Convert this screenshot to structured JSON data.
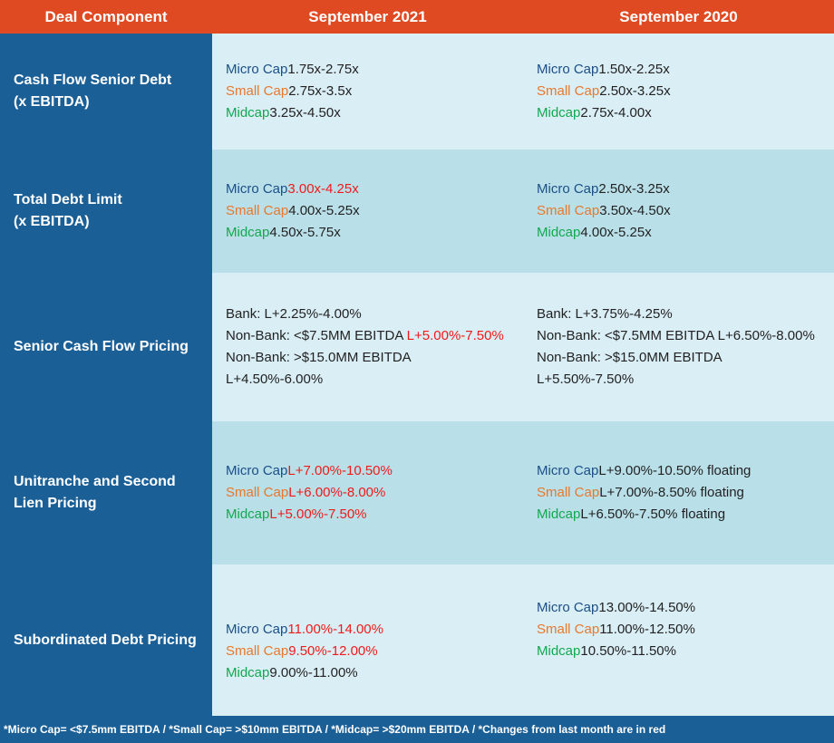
{
  "header": {
    "col0": "Deal Component",
    "col1": "September 2021",
    "col2": "September 2020"
  },
  "tiers": {
    "micro": "Micro Cap",
    "small": "Small Cap",
    "mid": "Midcap"
  },
  "rows": {
    "cash_flow": {
      "label_line1": "Cash Flow Senior Debt",
      "label_line2": "(x EBITDA)",
      "sep2021": {
        "micro": "1.75x-2.75x",
        "small": "2.75x-3.5x",
        "mid": "3.25x-4.50x"
      },
      "sep2020": {
        "micro": "1.50x-2.25x",
        "small": "2.50x-3.25x",
        "mid": "2.75x-4.00x"
      }
    },
    "total_debt": {
      "label_line1": "Total Debt Limit",
      "label_line2": "(x EBITDA)",
      "sep2021": {
        "micro": "3.00x-4.25x",
        "small": "4.00x-5.25x",
        "mid": "4.50x-5.75x"
      },
      "sep2020": {
        "micro": "2.50x-3.25x",
        "small": "3.50x-4.50x",
        "mid": "4.00x-5.25x"
      }
    },
    "senior_pricing": {
      "label": "Senior Cash Flow Pricing",
      "sep2021": {
        "bank": "Bank: L+2.25%-4.00%",
        "nonbank1_prefix": "Non-Bank: <$7.5MM EBITDA ",
        "nonbank1_value": "L+5.00%-7.50%",
        "nonbank2": "Non-Bank: >$15.0MM EBITDA L+4.50%-6.00%"
      },
      "sep2020": {
        "bank": "Bank: L+3.75%-4.25%",
        "nonbank1": "Non-Bank: <$7.5MM EBITDA L+6.50%-8.00%",
        "nonbank2": "Non-Bank: >$15.0MM EBITDA L+5.50%-7.50%"
      }
    },
    "unitranche": {
      "label_line1": "Unitranche and Second",
      "label_line2": "Lien Pricing",
      "sep2021": {
        "micro": "L+7.00%-10.50%",
        "small": "L+6.00%-8.00%",
        "mid": "L+5.00%-7.50%"
      },
      "sep2020": {
        "micro": "L+9.00%-10.50% floating",
        "small": "L+7.00%-8.50% floating",
        "mid": "L+6.50%-7.50% floating"
      }
    },
    "subordinated": {
      "label": "Subordinated Debt Pricing",
      "sep2021": {
        "micro": "11.00%-14.00%",
        "small": "9.50%-12.00%",
        "mid": "9.00%-11.00%"
      },
      "sep2020": {
        "micro": "13.00%-14.50%",
        "small": "11.00%-12.50%",
        "mid": "10.50%-11.50%"
      }
    }
  },
  "footer": "*Micro Cap= <$7.5mm EBITDA / *Small Cap= >$10mm EBITDA / *Midcap= >$20mm EBITDA / *Changes from last month are in red",
  "colors": {
    "header_bg": "#e04a23",
    "label_bg": "#1b5f97",
    "row_light": "#daeef5",
    "row_dark": "#b9dfe8",
    "micro": "#1b4f88",
    "small": "#e8782d",
    "mid": "#13a750",
    "changed": "#ee1b1b"
  }
}
